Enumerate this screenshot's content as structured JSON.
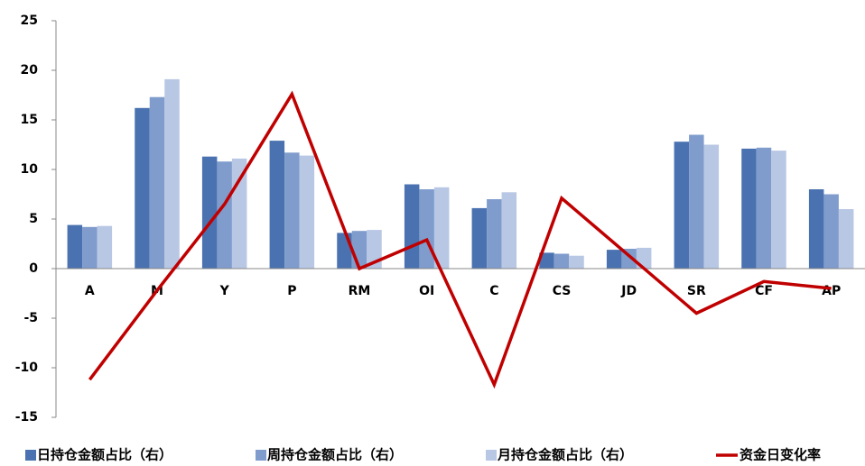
{
  "chart_data": {
    "type": "bar",
    "categories": [
      "A",
      "M",
      "Y",
      "P",
      "RM",
      "OI",
      "C",
      "CS",
      "JD",
      "SR",
      "CF",
      "AP"
    ],
    "series": [
      {
        "name": "日持仓金额占比（右）",
        "type": "bar",
        "color": "#4a72b0",
        "values": [
          4.4,
          16.2,
          11.3,
          12.9,
          3.6,
          8.5,
          6.1,
          1.6,
          1.9,
          12.8,
          12.1,
          8.0
        ]
      },
      {
        "name": "周持仓金额占比（右）",
        "type": "bar",
        "color": "#7f9ccc",
        "values": [
          4.2,
          17.3,
          10.8,
          11.7,
          3.8,
          8.0,
          7.0,
          1.5,
          2.0,
          13.5,
          12.2,
          7.5
        ]
      },
      {
        "name": "月持仓金额占比（右）",
        "type": "bar",
        "color": "#b8c7e4",
        "values": [
          4.3,
          19.1,
          11.1,
          11.4,
          3.9,
          8.2,
          7.7,
          1.3,
          2.1,
          12.5,
          11.9,
          6.0
        ]
      },
      {
        "name": "资金日变化率",
        "type": "line",
        "color": "#c00000",
        "values": [
          -11.2,
          -2.2,
          6.5,
          17.6,
          0,
          2.9,
          -11.7,
          7.1,
          1.3,
          -4.5,
          -1.3,
          -2.0
        ]
      }
    ],
    "ylim": [
      -15,
      25
    ],
    "yticks": [
      -15,
      -10,
      -5,
      0,
      5,
      10,
      15,
      20,
      25
    ],
    "grid": false
  }
}
